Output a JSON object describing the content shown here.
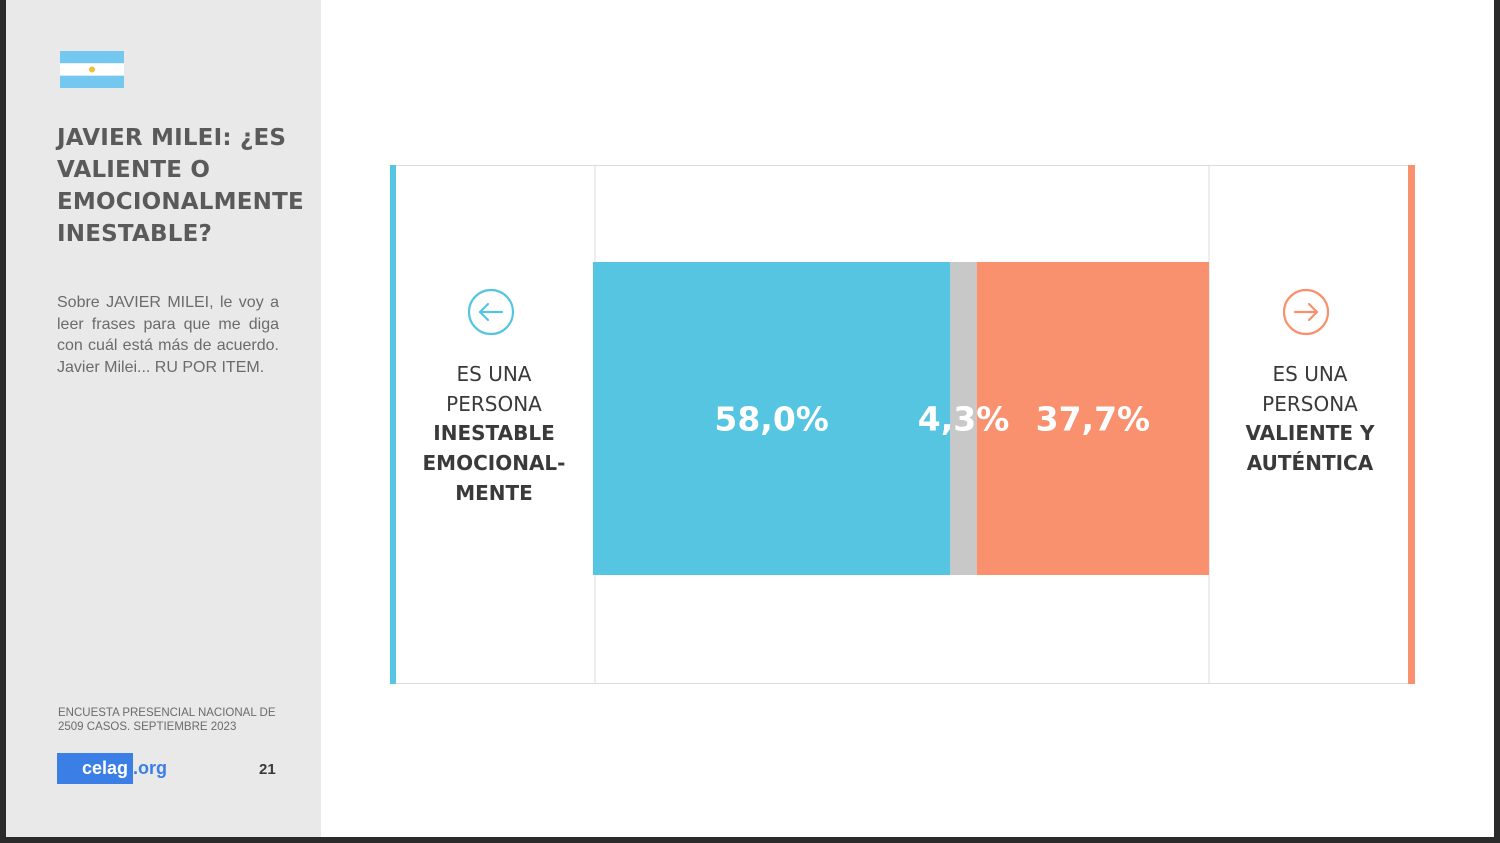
{
  "slide": {
    "title": "JAVIER MILEI: ¿ES VALIENTE O EMOCIONALMENTE INESTABLE?",
    "question": "Sobre JAVIER MILEI, le voy a leer frases para que me diga con cuál está más de acuerdo. Javier Milei... RU POR ITEM.",
    "source": "ENCUESTA PRESENCIAL NACIONAL DE 2509 CASOS. SEPTIEMBRE 2023",
    "logo_main": "celag",
    "logo_ext": ".org",
    "page_number": "21",
    "flag_icon": "argentina-flag-icon"
  },
  "colors": {
    "left": "#56c5e1",
    "middle": "#c8c8c8",
    "right": "#f9906e",
    "sidebar": "#e9e9e9",
    "logo": "#3a7ee6"
  },
  "chart_data": {
    "type": "bar",
    "orientation": "horizontal-stacked",
    "categories": [
      "ES UNA PERSONA INESTABLE EMOCIONAL-MENTE",
      "",
      "ES UNA PERSONA VALIENTE Y AUTÉNTICA"
    ],
    "values": [
      58.0,
      4.3,
      37.7
    ],
    "value_labels": [
      "58,0%",
      "4,3%",
      "37,7%"
    ],
    "left_label": {
      "line1": "ES UNA",
      "line2": "PERSONA",
      "bold1": "INESTABLE",
      "bold2": "EMOCIONAL-",
      "bold3": "MENTE"
    },
    "right_label": {
      "line1": "ES UNA",
      "line2": "PERSONA",
      "bold1": "VALIENTE Y",
      "bold2": "AUTÉNTICA"
    },
    "left_icon": "arrow-left-circle-icon",
    "right_icon": "arrow-right-circle-icon",
    "xlim": [
      0,
      100
    ]
  }
}
